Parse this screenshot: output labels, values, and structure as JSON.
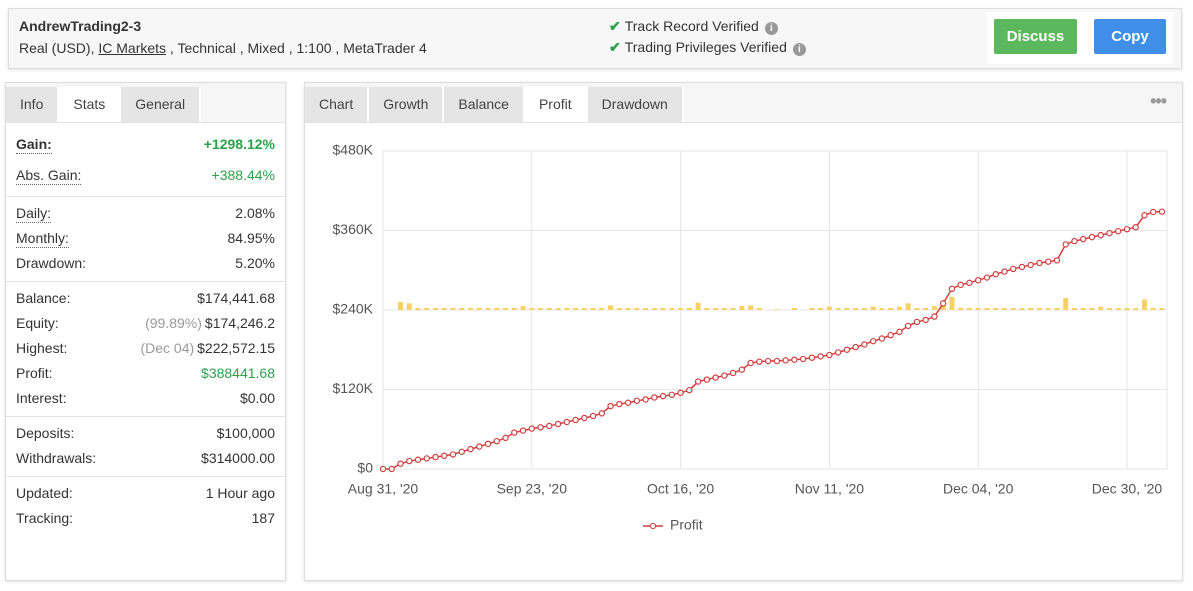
{
  "header": {
    "title": "AndrewTrading2-3",
    "subtitle": [
      "Real (USD), ",
      "IC Markets",
      " , Technical , Mixed , 1:100 , MetaTrader 4"
    ],
    "verified": [
      "Track Record Verified",
      "Trading Privileges Verified"
    ],
    "buttons": [
      "Discuss",
      "Copy"
    ]
  },
  "left_tabs": [
    "Info",
    "Stats",
    "General"
  ],
  "left_active_tab": 1,
  "stats": [
    [
      {
        "label": "Gain:",
        "value": "+1298.12%",
        "color": "#2ba14b",
        "underline": true,
        "bold": true
      },
      {
        "label": "Abs. Gain:",
        "value": "+388.44%",
        "color": "#2ba14b",
        "underline": true
      }
    ],
    [
      {
        "label": "Daily:",
        "value": "2.08%",
        "underline": true
      },
      {
        "label": "Monthly:",
        "value": "84.95%",
        "underline": true
      },
      {
        "label": "Drawdown:",
        "value": "5.20%"
      }
    ],
    [
      {
        "label": "Balance:",
        "value": "$174,441.68"
      },
      {
        "label": "Equity:",
        "note": "(99.89%)",
        "value": "$174,246.2"
      },
      {
        "label": "Highest:",
        "note": "(Dec 04)",
        "value": "$222,572.15"
      },
      {
        "label": "Profit:",
        "value": "$388441.68",
        "color": "#2ba14b"
      },
      {
        "label": "Interest:",
        "value": "$0.00"
      }
    ],
    [
      {
        "label": "Deposits:",
        "value": "$100,000"
      },
      {
        "label": "Withdrawals:",
        "value": "$314000.00"
      }
    ],
    [
      {
        "label": "Updated:",
        "value": "1 Hour ago"
      },
      {
        "label": "Tracking:",
        "value": "187"
      }
    ]
  ],
  "chart_tabs": [
    "Chart",
    "Growth",
    "Balance",
    "Profit",
    "Drawdown"
  ],
  "chart_active_tab": 3,
  "chart_data": {
    "type": "line",
    "categories": [
      "Aug 31, '20",
      null,
      null,
      null,
      null,
      null,
      null,
      null,
      null,
      null,
      null,
      null,
      null,
      null,
      null,
      null,
      null,
      "Sep 23, '20",
      null,
      null,
      null,
      null,
      null,
      null,
      null,
      null,
      null,
      null,
      null,
      null,
      null,
      null,
      null,
      null,
      "Oct 16, '20",
      null,
      null,
      null,
      null,
      null,
      null,
      null,
      null,
      null,
      null,
      null,
      null,
      null,
      null,
      null,
      null,
      "Nov 11, '20",
      null,
      null,
      null,
      null,
      null,
      null,
      null,
      null,
      null,
      null,
      null,
      null,
      null,
      null,
      null,
      null,
      "Dec 04, '20",
      null,
      null,
      null,
      null,
      null,
      null,
      null,
      null,
      null,
      null,
      null,
      null,
      null,
      null,
      null,
      null,
      "Dec 30, '20",
      null,
      null,
      null,
      null
    ],
    "series": [
      {
        "name": "Profit",
        "type": "line",
        "color": "#d23f3f",
        "values": [
          0,
          0,
          8000,
          12000,
          14000,
          16000,
          18000,
          20000,
          22000,
          26000,
          30000,
          34000,
          38000,
          42000,
          47000,
          55000,
          58000,
          61000,
          63000,
          65000,
          68000,
          71000,
          74000,
          77000,
          80000,
          84000,
          95000,
          98000,
          100000,
          103000,
          105000,
          108000,
          110000,
          112000,
          115000,
          119000,
          132000,
          135000,
          138000,
          141000,
          145000,
          150000,
          160000,
          162000,
          163000,
          163000,
          164000,
          165000,
          166000,
          168000,
          170000,
          172000,
          176000,
          180000,
          184000,
          188000,
          193000,
          197000,
          202000,
          207000,
          216000,
          222000,
          225000,
          230000,
          250000,
          272000,
          278000,
          281000,
          285000,
          289000,
          294000,
          298000,
          302000,
          305000,
          308000,
          311000,
          313000,
          315000,
          339000,
          344000,
          347000,
          350000,
          353000,
          356000,
          359000,
          362000,
          365000,
          383000,
          388000,
          388441.68
        ]
      },
      {
        "type": "bar",
        "axis": "y2",
        "color": "#f7d165",
        "values": [
          0,
          0,
          12000,
          10000,
          3000,
          3000,
          3000,
          3000,
          3000,
          3000,
          3000,
          3000,
          3000,
          3000,
          3000,
          3000,
          6000,
          3000,
          3000,
          3000,
          3000,
          3000,
          3000,
          3000,
          3000,
          3000,
          7000,
          3000,
          3000,
          3000,
          3000,
          3000,
          3000,
          3000,
          3000,
          3000,
          11000,
          3000,
          3000,
          3000,
          3000,
          6000,
          7000,
          3000,
          0,
          1000,
          0,
          3000,
          0,
          3000,
          3000,
          5000,
          3000,
          3000,
          3000,
          3000,
          5000,
          3000,
          3000,
          5000,
          10000,
          3000,
          3000,
          6000,
          9000,
          20000,
          3000,
          3000,
          3000,
          3000,
          3000,
          3000,
          3000,
          3000,
          3000,
          3000,
          3000,
          3000,
          18000,
          3000,
          3000,
          3000,
          5000,
          3000,
          3000,
          3000,
          3000,
          16000,
          3000,
          3000
        ]
      }
    ],
    "ylim": [
      0,
      480000
    ],
    "yticks": [
      {
        "value": 0,
        "label": "$0"
      },
      {
        "value": 120000,
        "label": "$120K"
      },
      {
        "value": 240000,
        "label": "$240K"
      },
      {
        "value": 360000,
        "label": "$360K"
      },
      {
        "value": 480000,
        "label": "$480K"
      }
    ],
    "y2lim": [
      -240000,
      240000
    ],
    "grid": true
  }
}
